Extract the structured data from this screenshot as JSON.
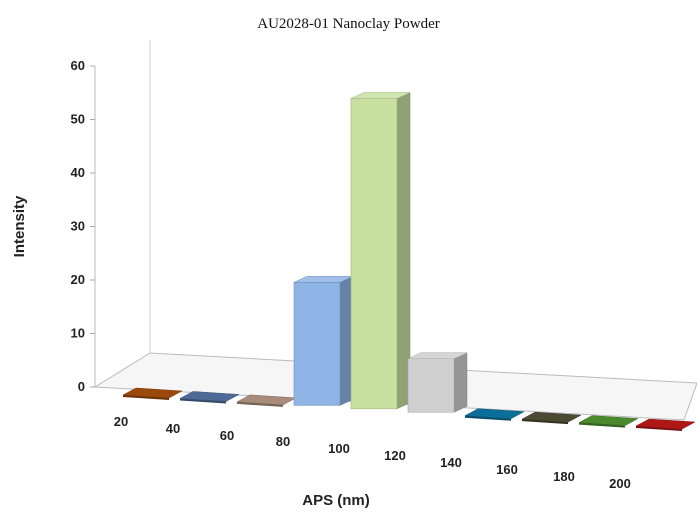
{
  "chart_data": {
    "type": "bar",
    "title": "AU2028-01 Nanoclay Powder",
    "xlabel": "APS (nm)",
    "ylabel": "Intensity",
    "categories": [
      "20",
      "40",
      "60",
      "80",
      "100",
      "120",
      "140",
      "160",
      "180",
      "200"
    ],
    "values": [
      0,
      0,
      0,
      23,
      58,
      10,
      0,
      0,
      0,
      0
    ],
    "ylim": [
      0,
      60
    ],
    "yticks": [
      "0",
      "10",
      "20",
      "30",
      "40",
      "50",
      "60"
    ],
    "bar_colors": [
      "#9c4a0c",
      "#4f6a98",
      "#a78c7a",
      "#8fb4e6",
      "#c8e0a0",
      "#cfcfcf",
      "#0b6f9a",
      "#4c4a32",
      "#4a8a2c",
      "#b01818"
    ],
    "style": "3d-perspective",
    "grid": false,
    "legend": "none"
  }
}
